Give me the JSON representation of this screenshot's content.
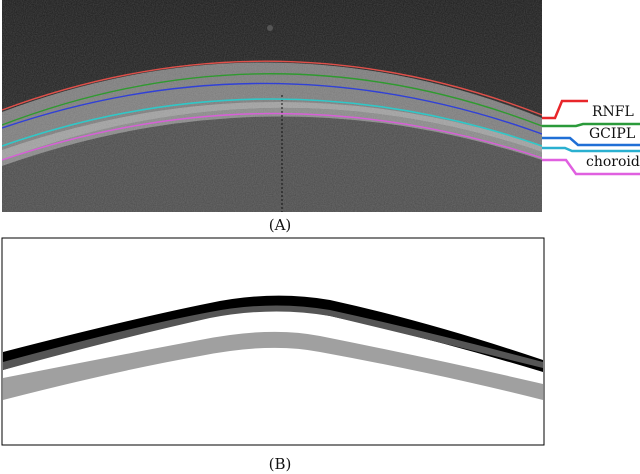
{
  "panel_a": {
    "caption": "(A)",
    "legend": [
      {
        "label": "RNFL",
        "color": "#e8262a"
      },
      {
        "label": "GCIPL",
        "color": "#1f6fd6"
      },
      {
        "label": "choroid",
        "color": "#e060e0"
      }
    ],
    "boundary_colors": {
      "ilm": "#e0504a",
      "rnfl_gcipl": "#2f9a2f",
      "gcipl_inner": "#3040d8",
      "gcipl_outer": "#30c8c8",
      "choroid": "#d860d8"
    }
  },
  "panel_b": {
    "caption": "(B)",
    "layer_colors": {
      "rnfl": "#000000",
      "gcipl": "#555555",
      "choroid": "#a0a0a0"
    }
  }
}
